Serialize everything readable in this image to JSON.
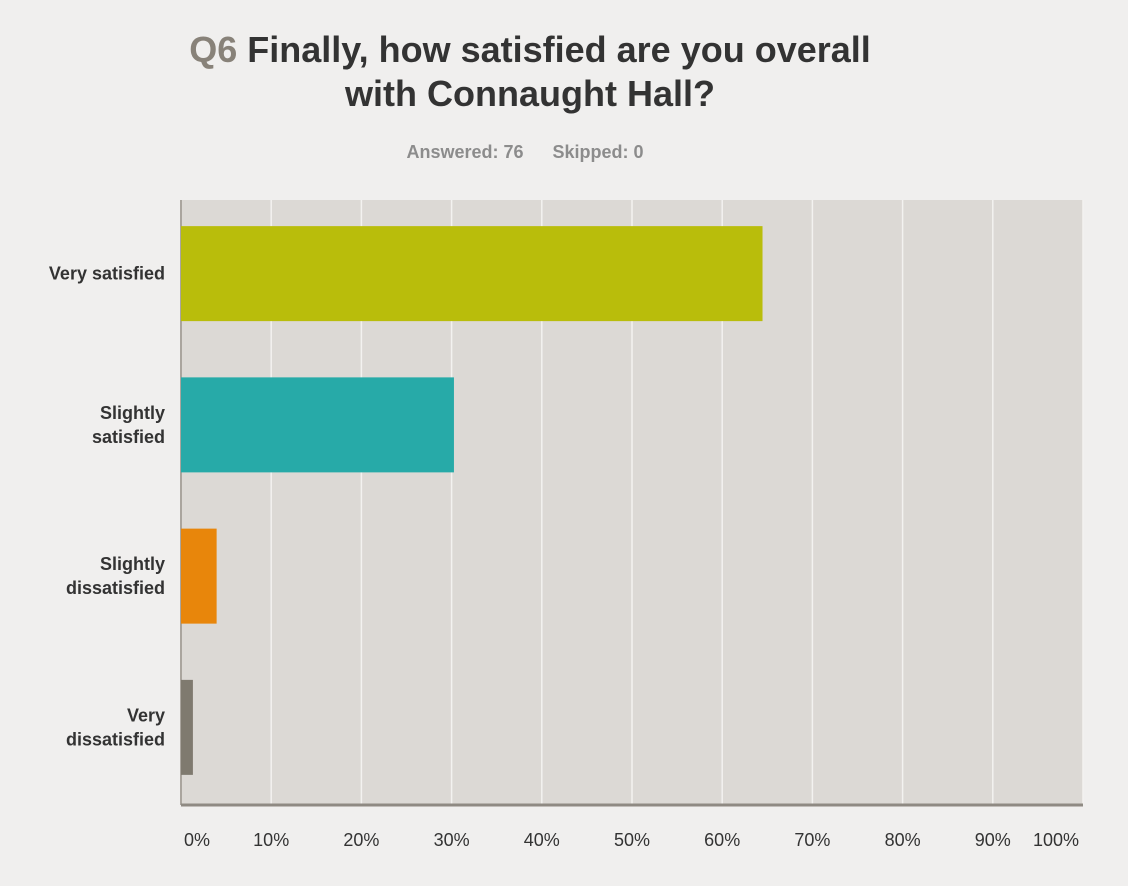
{
  "question": {
    "number": "Q6",
    "text_line1": "Finally, how satisfied are you overall",
    "text_line2": "with Connaught Hall?"
  },
  "stats": {
    "answered": "Answered: 76",
    "skipped": "Skipped: 0"
  },
  "chart_data": {
    "type": "bar",
    "orientation": "horizontal",
    "title": "Q6 Finally, how satisfied are you overall with Connaught Hall?",
    "categories": [
      [
        "Very satisfied"
      ],
      [
        "Slightly",
        "satisfied"
      ],
      [
        "Slightly",
        "dissatisfied"
      ],
      [
        "Very",
        "dissatisfied"
      ]
    ],
    "values": [
      64.47,
      30.26,
      3.95,
      1.32
    ],
    "colors": [
      "#b9bd0b",
      "#27aaa8",
      "#e8860b",
      "#7f7a6f"
    ],
    "xlim": [
      0,
      100
    ],
    "x_ticks": [
      "0%",
      "10%",
      "20%",
      "30%",
      "40%",
      "50%",
      "60%",
      "70%",
      "80%",
      "90%",
      "100%"
    ],
    "grid": true,
    "legend": "none"
  }
}
